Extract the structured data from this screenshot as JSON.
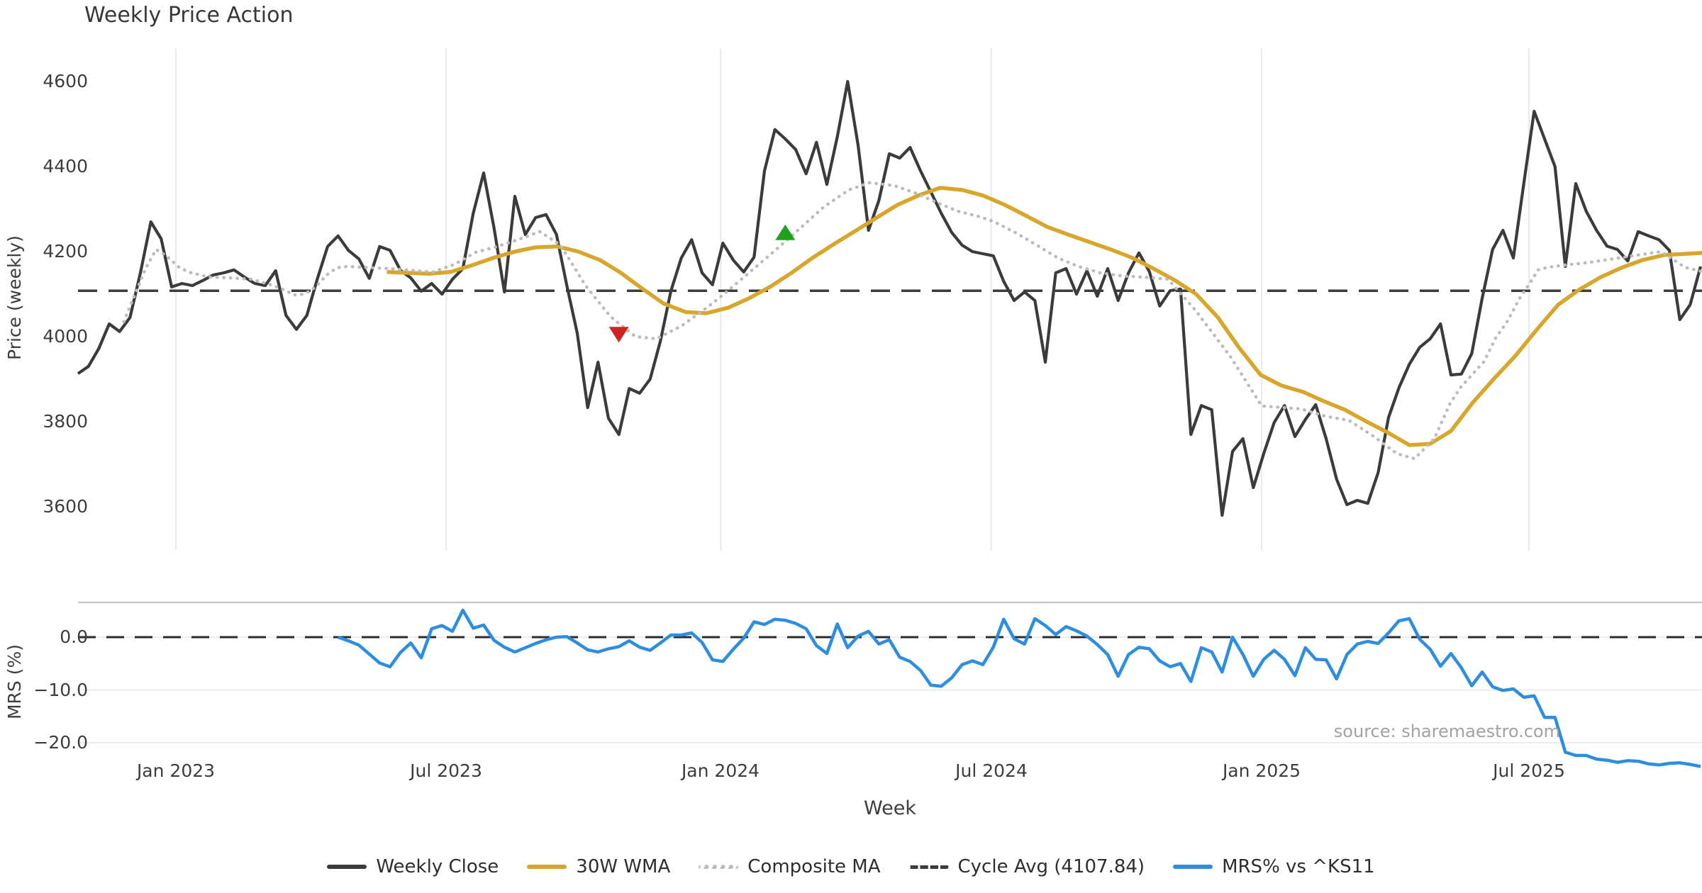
{
  "title": "Weekly Price Action",
  "source": "source: sharemaestro.com",
  "x_axis_label": "Week",
  "price_axis_label": "Price (weekly)",
  "mrs_axis_label": "MRS (%)",
  "colors": {
    "weekly_close": "#3b3b3b",
    "wma30": "#d7a62b",
    "composite": "#bcbcbc",
    "cycle_avg": "#3c3c3c",
    "mrs": "#2d8de0",
    "sell_marker": "#cf2222",
    "buy_marker": "#1fa11f",
    "grid": "#e9e9e9",
    "separator": "#c9c9c9"
  },
  "legend": [
    {
      "slug": "weekly-close",
      "label": "Weekly Close",
      "color": "#3b3b3b",
      "style": "solid"
    },
    {
      "slug": "wma30",
      "label": "30W WMA",
      "color": "#d7a62b",
      "style": "solid"
    },
    {
      "slug": "composite-ma",
      "label": "Composite MA",
      "color": "#bcbcbc",
      "style": "dotted"
    },
    {
      "slug": "cycle-avg",
      "label": "Cycle Avg (4107.84)",
      "color": "#3c3c3c",
      "style": "dashed"
    },
    {
      "slug": "mrs",
      "label": "MRS% vs ^KS11",
      "color": "#2d8de0",
      "style": "solid"
    }
  ],
  "chart_data": {
    "type": "line",
    "title": "Weekly Price Action",
    "xlabel": "Week",
    "x_ticks": [
      {
        "label": "Jan 2023",
        "week": 9.4
      },
      {
        "label": "Jul 2023",
        "week": 35.4
      },
      {
        "label": "Jan 2024",
        "week": 61.8
      },
      {
        "label": "Jul 2024",
        "week": 87.8
      },
      {
        "label": "Jan 2025",
        "week": 113.8
      },
      {
        "label": "Jul 2025",
        "week": 139.5
      }
    ],
    "week_range": [
      0,
      156.3
    ],
    "price_axis": {
      "label": "Price (weekly)",
      "ticks": [
        {
          "label": "4600",
          "value": 4600
        },
        {
          "label": "4400",
          "value": 4400
        },
        {
          "label": "4200",
          "value": 4200
        },
        {
          "label": "4000",
          "value": 4000
        },
        {
          "label": "3800",
          "value": 3800
        },
        {
          "label": "3600",
          "value": 3600
        }
      ]
    },
    "mrs_axis": {
      "label": "MRS (%)",
      "ticks": [
        {
          "label": "0.0",
          "value": 0
        },
        {
          "label": "−10.0",
          "value": -10
        },
        {
          "label": "−20.0",
          "value": -20
        }
      ]
    },
    "cycle_avg": 4107.84,
    "series": {
      "weekly_close": {
        "name": "Weekly Close",
        "start_week": 0,
        "values": [
          3913,
          3930,
          3972,
          4030,
          4012,
          4045,
          4150,
          4270,
          4230,
          4117,
          4125,
          4120,
          4132,
          4145,
          4150,
          4157,
          4140,
          4125,
          4120,
          4155,
          4050,
          4017,
          4050,
          4135,
          4212,
          4237,
          4203,
          4183,
          4137,
          4212,
          4203,
          4156,
          4138,
          4107,
          4125,
          4100,
          4135,
          4160,
          4290,
          4385,
          4255,
          4105,
          4330,
          4240,
          4280,
          4287,
          4240,
          4120,
          4008,
          3833,
          3940,
          3808,
          3770,
          3878,
          3867,
          3900,
          3990,
          4107,
          4185,
          4228,
          4150,
          4122,
          4220,
          4180,
          4152,
          4187,
          4390,
          4487,
          4465,
          4440,
          4383,
          4457,
          4358,
          4470,
          4600,
          4450,
          4250,
          4320,
          4430,
          4420,
          4445,
          4390,
          4340,
          4290,
          4245,
          4215,
          4200,
          4195,
          4190,
          4130,
          4085,
          4105,
          4085,
          3940,
          4150,
          4160,
          4100,
          4155,
          4095,
          4160,
          4085,
          4150,
          4197,
          4153,
          4072,
          4108,
          4112,
          3770,
          3838,
          3828,
          3580,
          3730,
          3760,
          3645,
          3725,
          3798,
          3838,
          3765,
          3805,
          3840,
          3760,
          3665,
          3605,
          3615,
          3608,
          3680,
          3810,
          3880,
          3935,
          3975,
          3995,
          4030,
          3910,
          3912,
          3960,
          4090,
          4205,
          4250,
          4185,
          4360,
          4530,
          4465,
          4400,
          4165,
          4360,
          4295,
          4250,
          4213,
          4205,
          4178,
          4247,
          4237,
          4228,
          4203,
          4040,
          4075,
          4165
        ]
      },
      "wma30": {
        "name": "30W WMA",
        "points": [
          [
            29.7,
            4152
          ],
          [
            31.7,
            4150
          ],
          [
            33.8,
            4148
          ],
          [
            35.8,
            4152
          ],
          [
            37.9,
            4168
          ],
          [
            39.9,
            4185
          ],
          [
            42,
            4200
          ],
          [
            44,
            4210
          ],
          [
            46.1,
            4212
          ],
          [
            48.1,
            4200
          ],
          [
            50.2,
            4180
          ],
          [
            52.2,
            4150
          ],
          [
            54.3,
            4112
          ],
          [
            56.3,
            4078
          ],
          [
            58.4,
            4058
          ],
          [
            60.4,
            4055
          ],
          [
            62.5,
            4068
          ],
          [
            64.5,
            4090
          ],
          [
            66.6,
            4118
          ],
          [
            68.6,
            4150
          ],
          [
            70.6,
            4185
          ],
          [
            72.7,
            4218
          ],
          [
            74.7,
            4248
          ],
          [
            76.8,
            4280
          ],
          [
            78.8,
            4310
          ],
          [
            80.9,
            4333
          ],
          [
            82.9,
            4350
          ],
          [
            85,
            4345
          ],
          [
            87,
            4332
          ],
          [
            89.1,
            4310
          ],
          [
            91.1,
            4285
          ],
          [
            93.2,
            4258
          ],
          [
            95.2,
            4240
          ],
          [
            97.3,
            4222
          ],
          [
            99.3,
            4205
          ],
          [
            101.4,
            4185
          ],
          [
            103.4,
            4160
          ],
          [
            105.5,
            4132
          ],
          [
            107.5,
            4100
          ],
          [
            109.6,
            4045
          ],
          [
            111.6,
            3975
          ],
          [
            113.7,
            3910
          ],
          [
            115.7,
            3885
          ],
          [
            117.8,
            3870
          ],
          [
            119.8,
            3848
          ],
          [
            121.8,
            3828
          ],
          [
            123.9,
            3800
          ],
          [
            125.9,
            3775
          ],
          [
            128,
            3745
          ],
          [
            130,
            3748
          ],
          [
            132,
            3778
          ],
          [
            134.1,
            3845
          ],
          [
            136.1,
            3900
          ],
          [
            138.2,
            3955
          ],
          [
            140.2,
            4015
          ],
          [
            142.3,
            4075
          ],
          [
            144.3,
            4110
          ],
          [
            146.4,
            4140
          ],
          [
            148.4,
            4162
          ],
          [
            150.4,
            4180
          ],
          [
            152.5,
            4192
          ],
          [
            156.3,
            4197
          ]
        ]
      },
      "composite": {
        "name": "Composite MA",
        "points": [
          [
            4.4,
            4035
          ],
          [
            6.5,
            4160
          ],
          [
            7.5,
            4205
          ],
          [
            8.5,
            4190
          ],
          [
            9.6,
            4165
          ],
          [
            10.6,
            4152
          ],
          [
            12.6,
            4140
          ],
          [
            14.7,
            4138
          ],
          [
            16.7,
            4135
          ],
          [
            18.8,
            4120
          ],
          [
            19.8,
            4110
          ],
          [
            20.8,
            4098
          ],
          [
            21.8,
            4100
          ],
          [
            22.9,
            4118
          ],
          [
            23.9,
            4145
          ],
          [
            24.9,
            4162
          ],
          [
            25.9,
            4165
          ],
          [
            30,
            4160
          ],
          [
            34.1,
            4152
          ],
          [
            36.2,
            4170
          ],
          [
            38.2,
            4198
          ],
          [
            40.3,
            4212
          ],
          [
            42.3,
            4228
          ],
          [
            44.4,
            4247
          ],
          [
            46.4,
            4215
          ],
          [
            48.8,
            4120
          ],
          [
            51.2,
            4047
          ],
          [
            53.6,
            4000
          ],
          [
            55.6,
            3995
          ],
          [
            58,
            4025
          ],
          [
            60.4,
            4067
          ],
          [
            62.1,
            4100
          ],
          [
            64.5,
            4150
          ],
          [
            66.9,
            4200
          ],
          [
            69.3,
            4252
          ],
          [
            71.7,
            4305
          ],
          [
            74.1,
            4345
          ],
          [
            76.1,
            4362
          ],
          [
            78.5,
            4355
          ],
          [
            80.5,
            4338
          ],
          [
            82.6,
            4315
          ],
          [
            84.6,
            4295
          ],
          [
            86.7,
            4282
          ],
          [
            88.1,
            4270
          ],
          [
            90.1,
            4245
          ],
          [
            92.2,
            4215
          ],
          [
            94.2,
            4185
          ],
          [
            96.2,
            4165
          ],
          [
            98.3,
            4150
          ],
          [
            100.3,
            4143
          ],
          [
            102.4,
            4140
          ],
          [
            104.8,
            4135
          ],
          [
            107.4,
            4063
          ],
          [
            110.8,
            3953
          ],
          [
            113.8,
            3837
          ],
          [
            117.6,
            3830
          ],
          [
            119.9,
            3813
          ],
          [
            122.2,
            3803
          ],
          [
            124.6,
            3765
          ],
          [
            126.8,
            3725
          ],
          [
            128.5,
            3713
          ],
          [
            130.4,
            3760
          ],
          [
            131.9,
            3842
          ],
          [
            132.9,
            3880
          ],
          [
            135.2,
            3942
          ],
          [
            136.3,
            3997
          ],
          [
            137.4,
            4035
          ],
          [
            138.6,
            4090
          ],
          [
            139.5,
            4123
          ],
          [
            140.4,
            4157
          ],
          [
            141.3,
            4163
          ],
          [
            142.5,
            4167
          ],
          [
            145.4,
            4175
          ],
          [
            147.6,
            4183
          ],
          [
            150,
            4192
          ],
          [
            152.2,
            4200
          ],
          [
            154.5,
            4163
          ],
          [
            156.3,
            4152
          ]
        ]
      },
      "mrs": {
        "name": "MRS% vs ^KS11",
        "start_week": 25,
        "values": [
          0.0,
          -0.7,
          -1.5,
          -3.2,
          -4.9,
          -5.6,
          -2.9,
          -1.1,
          -3.9,
          1.6,
          2.2,
          1.1,
          5.1,
          1.7,
          2.3,
          -0.6,
          -1.9,
          -2.8,
          -2.0,
          -1.2,
          -0.5,
          0.0,
          0.1,
          -1.1,
          -2.4,
          -2.8,
          -2.2,
          -1.8,
          -0.7,
          -1.9,
          -2.5,
          -1.1,
          0.4,
          0.4,
          0.8,
          -1.0,
          -4.3,
          -4.6,
          -2.3,
          -0.2,
          2.9,
          2.4,
          3.4,
          3.2,
          2.6,
          1.6,
          -1.6,
          -3.1,
          2.5,
          -2.0,
          0.2,
          1.1,
          -1.3,
          -0.5,
          -3.8,
          -4.6,
          -6.3,
          -9.1,
          -9.3,
          -7.7,
          -5.2,
          -4.5,
          -5.2,
          -1.9,
          3.4,
          -0.3,
          -1.3,
          3.5,
          2.2,
          0.5,
          2.0,
          1.2,
          0.2,
          -1.4,
          -3.3,
          -7.4,
          -3.3,
          -1.9,
          -2.2,
          -4.5,
          -5.6,
          -5.0,
          -8.4,
          -2.0,
          -2.8,
          -6.6,
          0.0,
          -3.3,
          -7.4,
          -4.2,
          -2.5,
          -4.2,
          -7.3,
          -2.0,
          -4.2,
          -4.3,
          -7.9,
          -3.3,
          -1.3,
          -0.8,
          -1.2,
          0.8,
          3.1,
          3.5,
          -0.4,
          -2.3,
          -5.5,
          -3.1,
          -5.8,
          -9.2,
          -6.6,
          -9.4,
          -10.1,
          -9.8,
          -11.4,
          -11.1,
          -15.2,
          -15.2,
          -21.8,
          -22.4,
          -22.4,
          -23.1,
          -23.3,
          -23.7,
          -23.4,
          -23.5,
          -24.0,
          -24.2,
          -23.9,
          -23.8,
          -24.1,
          -24.5
        ]
      }
    },
    "markers": [
      {
        "type": "sell",
        "shape": "triangle-down",
        "week": 52,
        "price": 4008
      },
      {
        "type": "buy",
        "shape": "triangle-up",
        "week": 68,
        "price": 4242
      }
    ]
  }
}
